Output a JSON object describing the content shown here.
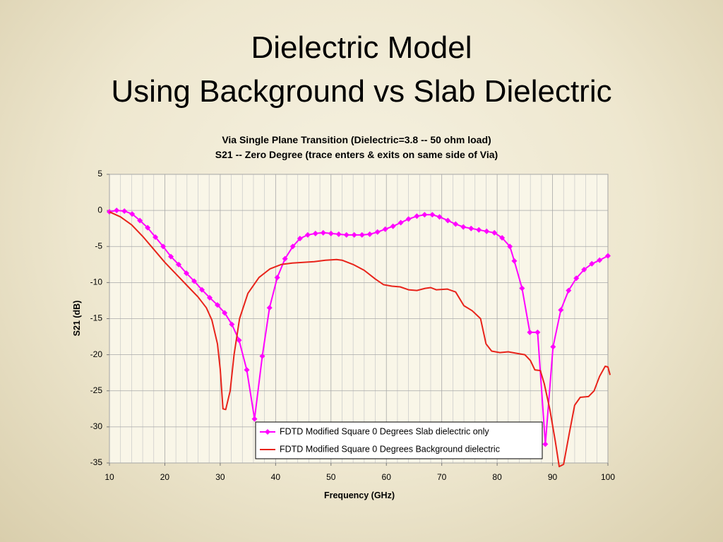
{
  "slide_title": [
    "Dielectric Model",
    "Using Background vs Slab Dielectric"
  ],
  "chart_data": {
    "type": "line",
    "title": [
      "Via Single Plane Transition  (Dielectric=3.8 -- 50 ohm load)",
      "S21 -- Zero Degree (trace enters & exits on same side of Via)"
    ],
    "x_label": "Frequency (GHz)",
    "y_label": "S21 (dB)",
    "xlim": [
      10,
      100
    ],
    "ylim": [
      -35,
      5
    ],
    "xticks": [
      10,
      20,
      30,
      40,
      50,
      60,
      70,
      80,
      90,
      100
    ],
    "yticks": [
      5,
      0,
      -5,
      -10,
      -15,
      -20,
      -25,
      -30,
      -35
    ],
    "xgrid": [
      12,
      14,
      16,
      18,
      22,
      24,
      26,
      28,
      32,
      34,
      36,
      38,
      42,
      44,
      46,
      48,
      52,
      54,
      56,
      58,
      62,
      64,
      66,
      68,
      72,
      74,
      76,
      78,
      82,
      84,
      86,
      88,
      92,
      94,
      96,
      98
    ],
    "grid": true,
    "legend": "lower center",
    "series": [
      {
        "name": "FDTD Modified Square 0 Degrees Slab dielectric only",
        "color": "#ff00ff",
        "marker": "diamond",
        "x": [
          10,
          11.3,
          12.7,
          14.1,
          15.5,
          16.9,
          18.3,
          19.7,
          21.1,
          22.5,
          23.9,
          25.3,
          26.7,
          28.1,
          29.5,
          30.8,
          32.1,
          33.4,
          34.8,
          36.2,
          37.6,
          38.9,
          40.3,
          41.7,
          43.1,
          44.4,
          45.8,
          47.2,
          48.6,
          50,
          51.4,
          52.8,
          54.2,
          55.6,
          57,
          58.4,
          59.8,
          61.2,
          62.6,
          64,
          65.5,
          66.9,
          68.3,
          69.6,
          71.1,
          72.5,
          73.9,
          75.3,
          76.7,
          78.1,
          79.5,
          80.9,
          82.3,
          83.1,
          84.5,
          85.9,
          87.3,
          88.7,
          90.1,
          91.5,
          92.9,
          94.3,
          95.7,
          97.1,
          98.5,
          100
        ],
        "values": [
          -0.2,
          0,
          -0.1,
          -0.5,
          -1.4,
          -2.4,
          -3.7,
          -5.0,
          -6.4,
          -7.5,
          -8.7,
          -9.8,
          -11.0,
          -12.1,
          -13.1,
          -14.2,
          -15.8,
          -18.0,
          -22.1,
          -28.9,
          -20.2,
          -13.5,
          -9.3,
          -6.7,
          -5.0,
          -3.9,
          -3.4,
          -3.2,
          -3.1,
          -3.2,
          -3.3,
          -3.4,
          -3.4,
          -3.4,
          -3.3,
          -3.0,
          -2.6,
          -2.2,
          -1.7,
          -1.2,
          -0.8,
          -0.6,
          -0.6,
          -0.9,
          -1.4,
          -1.9,
          -2.3,
          -2.5,
          -2.7,
          -2.9,
          -3.1,
          -3.8,
          -5.0,
          -7.0,
          -10.8,
          -16.9,
          -16.9,
          -32.4,
          -18.9,
          -13.8,
          -11.1,
          -9.4,
          -8.2,
          -7.4,
          -6.9,
          -6.3
        ]
      },
      {
        "name": "FDTD Modified Square 0 Degrees Background dielectric",
        "color": "#e8231a",
        "marker": "none",
        "x": [
          10,
          12,
          14,
          16,
          18,
          20,
          22,
          24,
          26,
          27.5,
          28.5,
          29.5,
          30,
          30.5,
          31,
          31.8,
          32.5,
          33.5,
          35,
          37,
          39,
          41,
          43,
          45,
          47,
          49,
          51,
          52,
          54,
          56,
          58,
          59.5,
          61,
          62.5,
          64,
          65.5,
          67,
          68,
          69,
          71,
          72.5,
          74,
          75.5,
          77,
          78,
          79,
          80.5,
          82,
          83.5,
          85,
          86,
          86.8,
          87.8,
          88.5,
          89.5,
          90.5,
          91.2,
          92,
          93,
          94,
          95,
          96.5,
          97.5,
          98.5,
          99.5,
          100,
          100.4
        ],
        "values": [
          -0.2,
          -0.9,
          -2.0,
          -3.6,
          -5.4,
          -7.2,
          -8.8,
          -10.4,
          -12.0,
          -13.5,
          -15.2,
          -18.5,
          -22,
          -27.5,
          -27.6,
          -25,
          -20,
          -15,
          -11.5,
          -9.3,
          -8.1,
          -7.5,
          -7.3,
          -7.2,
          -7.1,
          -6.9,
          -6.8,
          -6.9,
          -7.5,
          -8.3,
          -9.5,
          -10.3,
          -10.5,
          -10.6,
          -11.0,
          -11.1,
          -10.8,
          -10.7,
          -11.0,
          -10.9,
          -11.3,
          -13.2,
          -13.9,
          -15.0,
          -18.5,
          -19.5,
          -19.7,
          -19.6,
          -19.8,
          -20.0,
          -20.8,
          -22.1,
          -22.2,
          -24,
          -27.5,
          -32,
          -35.5,
          -35.2,
          -31,
          -27,
          -25.9,
          -25.8,
          -25.0,
          -23,
          -21.6,
          -21.7,
          -22.8
        ]
      }
    ]
  }
}
